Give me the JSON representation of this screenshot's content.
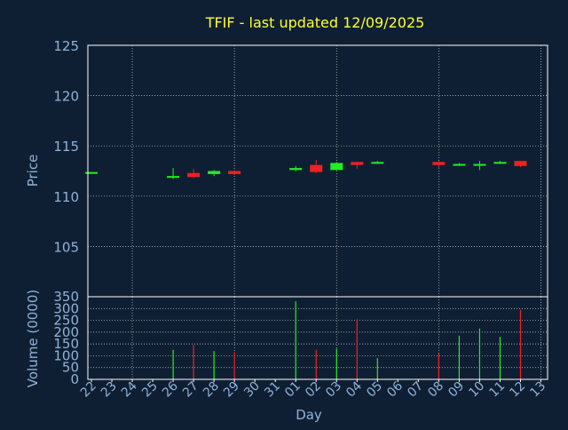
{
  "colors": {
    "background": "#0f1f33",
    "title": "#ffff33",
    "axis_text": "#8fb3d9",
    "frame": "#ffffff",
    "grid": "#d0d0d0",
    "up": "#22ee22",
    "down": "#ee2222"
  },
  "chart_data": [
    {
      "type": "candlestick",
      "title": "TFIF - last updated 12/09/2025",
      "ylabel": "Price",
      "ylim": [
        100,
        125
      ],
      "yticks": [
        105,
        110,
        115,
        120,
        125
      ],
      "grid": true,
      "candles": [
        {
          "day": "22",
          "open": 112.3,
          "high": 112.4,
          "low": 112.2,
          "close": 112.4
        },
        {
          "day": "26",
          "open": 111.9,
          "high": 112.8,
          "low": 111.7,
          "close": 112.0
        },
        {
          "day": "27",
          "open": 112.3,
          "high": 112.7,
          "low": 111.8,
          "close": 111.9
        },
        {
          "day": "28",
          "open": 112.2,
          "high": 112.6,
          "low": 112.0,
          "close": 112.5
        },
        {
          "day": "29",
          "open": 112.5,
          "high": 112.6,
          "low": 112.1,
          "close": 112.2
        },
        {
          "day": "01",
          "open": 112.6,
          "high": 113.0,
          "low": 112.5,
          "close": 112.8
        },
        {
          "day": "02",
          "open": 113.1,
          "high": 113.6,
          "low": 112.3,
          "close": 112.4
        },
        {
          "day": "03",
          "open": 112.6,
          "high": 113.4,
          "low": 112.6,
          "close": 113.3
        },
        {
          "day": "04",
          "open": 113.4,
          "high": 113.4,
          "low": 112.7,
          "close": 113.1
        },
        {
          "day": "05",
          "open": 113.3,
          "high": 113.5,
          "low": 113.2,
          "close": 113.4
        },
        {
          "day": "08",
          "open": 113.4,
          "high": 113.5,
          "low": 112.8,
          "close": 113.1
        },
        {
          "day": "09",
          "open": 113.1,
          "high": 113.3,
          "low": 113.0,
          "close": 113.2
        },
        {
          "day": "10",
          "open": 113.1,
          "high": 113.5,
          "low": 112.6,
          "close": 113.2
        },
        {
          "day": "11",
          "open": 113.3,
          "high": 113.5,
          "low": 113.2,
          "close": 113.4
        },
        {
          "day": "12",
          "open": 113.5,
          "high": 113.5,
          "low": 112.9,
          "close": 113.0
        }
      ]
    },
    {
      "type": "bar",
      "xlabel": "Day",
      "ylabel": "Volume (0000)",
      "ylim": [
        0,
        350
      ],
      "yticks": [
        0,
        50,
        100,
        150,
        200,
        250,
        300,
        350
      ],
      "grid": true,
      "categories": [
        "22",
        "23",
        "24",
        "25",
        "26",
        "27",
        "28",
        "29",
        "30",
        "31",
        "01",
        "02",
        "03",
        "04",
        "05",
        "06",
        "07",
        "08",
        "09",
        "10",
        "11",
        "12",
        "13"
      ],
      "bars": [
        {
          "day": "26",
          "value": 125,
          "direction": "up"
        },
        {
          "day": "27",
          "value": 145,
          "direction": "down"
        },
        {
          "day": "28",
          "value": 120,
          "direction": "up"
        },
        {
          "day": "29",
          "value": 115,
          "direction": "down"
        },
        {
          "day": "01",
          "value": 330,
          "direction": "up"
        },
        {
          "day": "02",
          "value": 125,
          "direction": "down"
        },
        {
          "day": "03",
          "value": 130,
          "direction": "up"
        },
        {
          "day": "04",
          "value": 255,
          "direction": "down"
        },
        {
          "day": "05",
          "value": 90,
          "direction": "up"
        },
        {
          "day": "08",
          "value": 110,
          "direction": "down"
        },
        {
          "day": "09",
          "value": 185,
          "direction": "up"
        },
        {
          "day": "10",
          "value": 215,
          "direction": "up"
        },
        {
          "day": "11",
          "value": 180,
          "direction": "up"
        },
        {
          "day": "12",
          "value": 295,
          "direction": "down"
        }
      ]
    }
  ]
}
